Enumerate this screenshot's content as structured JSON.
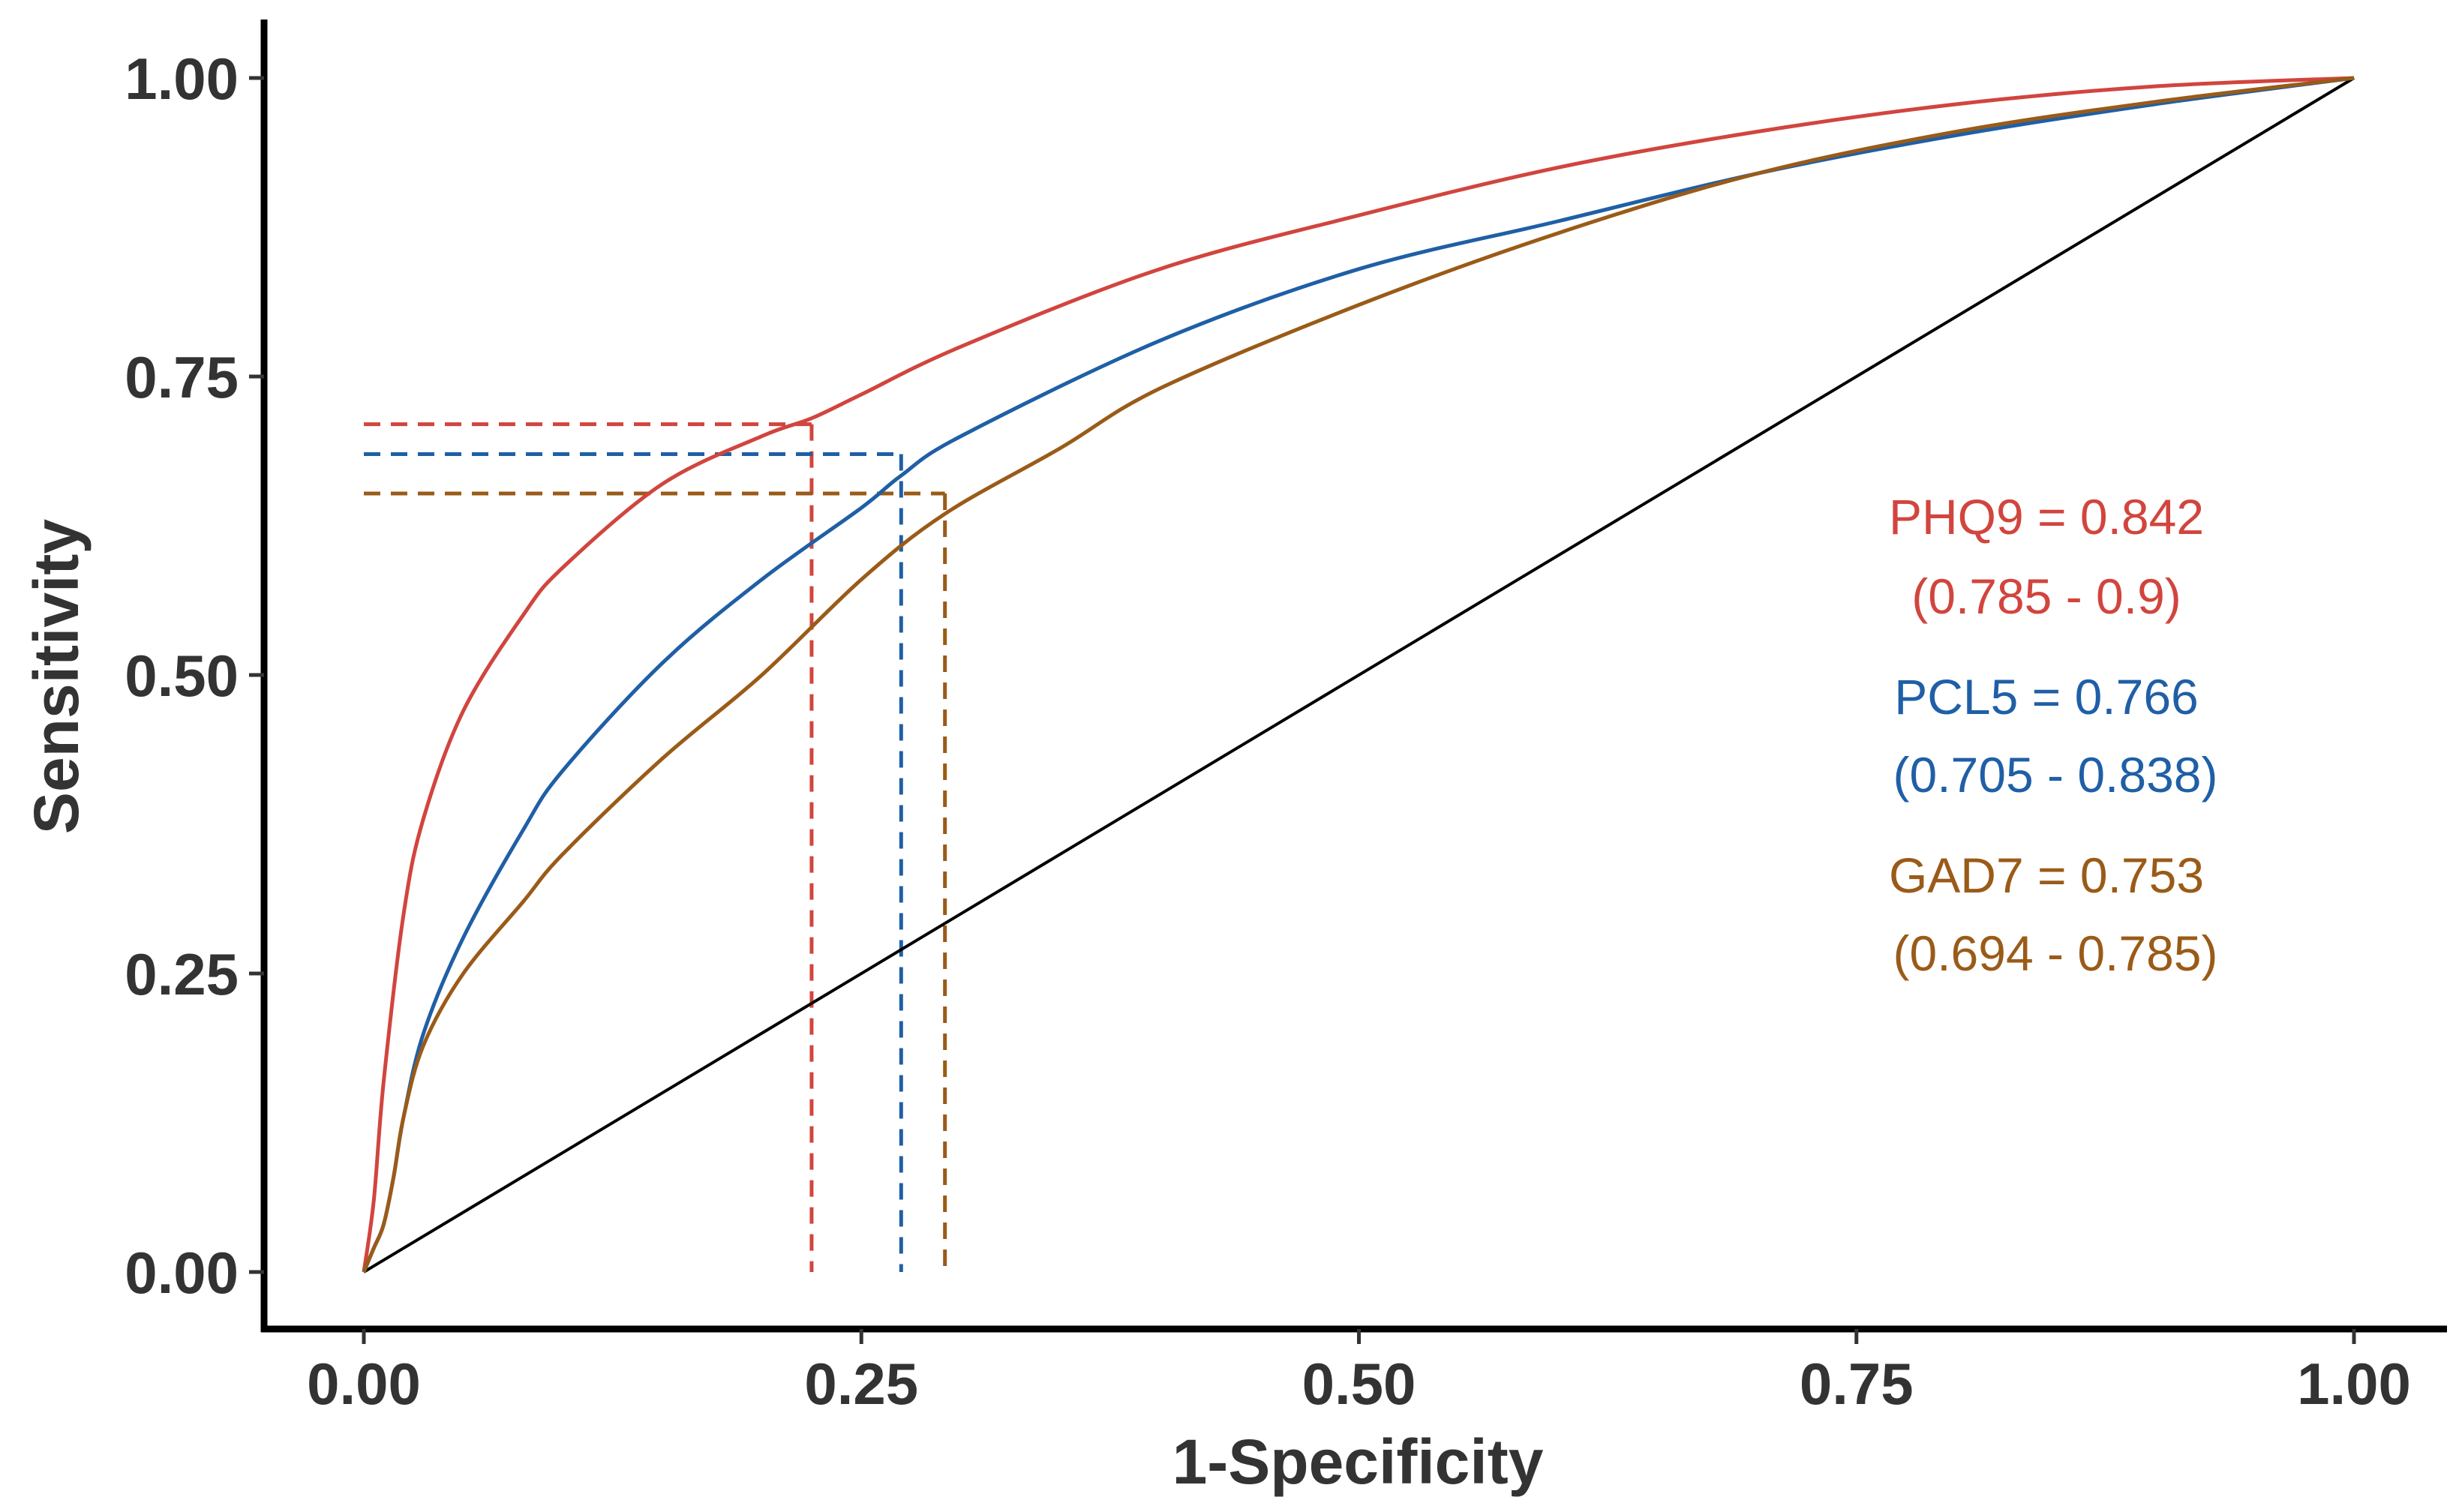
{
  "chart_data": {
    "type": "line",
    "title": "",
    "xlabel": "1-Specificity",
    "ylabel": "Sensitivity",
    "xlim": [
      0,
      1
    ],
    "ylim": [
      0,
      1
    ],
    "grid": false,
    "x_tick_labels": [
      "0.00",
      "0.25",
      "0.50",
      "0.75",
      "1.00"
    ],
    "y_tick_labels": [
      "0.00",
      "0.25",
      "0.50",
      "0.75",
      "1.00"
    ],
    "reference_line": {
      "name": "chance",
      "x": [
        0,
        1
      ],
      "y": [
        0,
        1
      ],
      "color": "#000000"
    },
    "series": [
      {
        "name": "PHQ9",
        "color": "#D1453E",
        "auc_label": "PHQ9 = 0.842",
        "ci_label": "(0.785 - 0.9)",
        "cutoff": {
          "x": 0.225,
          "y": 0.71
        },
        "x": [
          0,
          0.005,
          0.01,
          0.02,
          0.03,
          0.05,
          0.08,
          0.1,
          0.15,
          0.2,
          0.225,
          0.25,
          0.3,
          0.4,
          0.5,
          0.6,
          0.7,
          0.8,
          0.9,
          1.0
        ],
        "y": [
          0,
          0.06,
          0.16,
          0.3,
          0.38,
          0.47,
          0.55,
          0.59,
          0.66,
          0.7,
          0.715,
          0.735,
          0.775,
          0.84,
          0.885,
          0.925,
          0.955,
          0.978,
          0.993,
          1.0
        ]
      },
      {
        "name": "PCL5",
        "color": "#1F5FA6",
        "auc_label": "PCL5 = 0.766",
        "ci_label": "(0.705 - 0.838)",
        "cutoff": {
          "x": 0.27,
          "y": 0.685
        },
        "x": [
          0,
          0.005,
          0.01,
          0.015,
          0.02,
          0.03,
          0.05,
          0.08,
          0.1,
          0.15,
          0.2,
          0.25,
          0.27,
          0.3,
          0.4,
          0.5,
          0.6,
          0.7,
          0.8,
          0.9,
          1.0
        ],
        "y": [
          0,
          0.02,
          0.04,
          0.08,
          0.13,
          0.2,
          0.28,
          0.37,
          0.42,
          0.51,
          0.58,
          0.64,
          0.667,
          0.7,
          0.78,
          0.84,
          0.88,
          0.92,
          0.952,
          0.978,
          1.0
        ]
      },
      {
        "name": "GAD7",
        "color": "#9A5B18",
        "auc_label": "GAD7 = 0.753",
        "ci_label": "(0.694 - 0.785)",
        "cutoff": {
          "x": 0.292,
          "y": 0.652
        },
        "x": [
          0,
          0.005,
          0.01,
          0.015,
          0.02,
          0.03,
          0.05,
          0.08,
          0.1,
          0.15,
          0.2,
          0.25,
          0.292,
          0.35,
          0.4,
          0.5,
          0.6,
          0.7,
          0.8,
          0.9,
          1.0
        ],
        "y": [
          0,
          0.02,
          0.04,
          0.08,
          0.13,
          0.19,
          0.25,
          0.31,
          0.35,
          0.43,
          0.5,
          0.58,
          0.635,
          0.69,
          0.74,
          0.81,
          0.87,
          0.92,
          0.955,
          0.98,
          1.0
        ]
      }
    ]
  }
}
